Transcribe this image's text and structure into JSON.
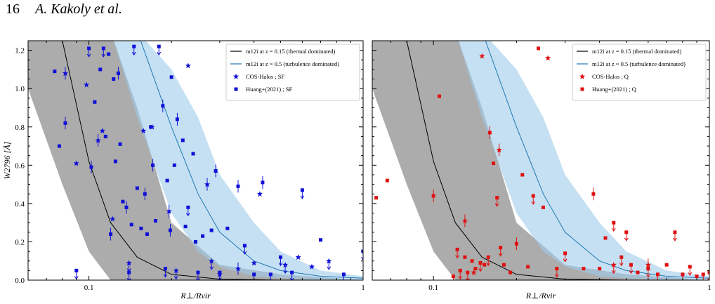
{
  "header": {
    "page_number": "16",
    "authors": "A. Kakoly et al."
  },
  "colors": {
    "thermal_line": "#000000",
    "thermal_band": "#9e9e9e",
    "turb_line": "#1f77b4",
    "turb_band": "#9fcbe9",
    "sf_points": "#1010d8",
    "q_points": "#e01010"
  },
  "chart_data": [
    {
      "type": "scatter",
      "panel": "left",
      "xlabel": "R⊥/Rvir",
      "ylabel": "W2796 [Å]",
      "xscale": "log",
      "xlim": [
        0.06,
        1.0
      ],
      "ylim": [
        0.0,
        1.25
      ],
      "x_ticks": [
        "0.1",
        "1"
      ],
      "y_ticks": [
        "0.0",
        "0.2",
        "0.4",
        "0.6",
        "0.8",
        "1.0",
        "1.2"
      ],
      "legend_position": "top-right",
      "legend": [
        "m12i at z = 0.15 (thermal dominated)",
        "m12i at z = 0.5 (turbulence dominated)",
        "COS-Halos ; SF",
        "Huang+(2021) ; SF"
      ],
      "bands": [
        {
          "name": "m12i at z = 0.15 (thermal dominated)",
          "x": [
            0.06,
            0.08,
            0.1,
            0.12,
            0.15,
            0.2,
            0.3,
            0.5,
            1.0
          ],
          "median": [
            1.6,
            1.25,
            0.62,
            0.3,
            0.12,
            0.03,
            0.005,
            0.0,
            0.0
          ],
          "lower": [
            1.0,
            0.5,
            0.15,
            0.0,
            0.0,
            0.0,
            0.0,
            0.0,
            0.0
          ],
          "upper": [
            1.3,
            1.3,
            1.3,
            1.3,
            0.9,
            0.3,
            0.08,
            0.03,
            0.0
          ]
        },
        {
          "name": "m12i at z = 0.5 (turbulence dominated)",
          "x": [
            0.12,
            0.15,
            0.2,
            0.25,
            0.3,
            0.4,
            0.5,
            0.7,
            1.0
          ],
          "median": [
            1.3,
            1.3,
            0.8,
            0.45,
            0.25,
            0.1,
            0.05,
            0.02,
            0.01
          ],
          "lower": [
            1.3,
            0.85,
            0.35,
            0.15,
            0.07,
            0.02,
            0.01,
            0.0,
            0.0
          ],
          "upper": [
            1.3,
            1.3,
            1.1,
            0.85,
            0.55,
            0.3,
            0.15,
            0.05,
            0.02
          ]
        }
      ],
      "series": [
        {
          "name": "COS-Halos ; SF",
          "marker": "star",
          "x": [
            0.082,
            0.09,
            0.098,
            0.108,
            0.112,
            0.122,
            0.14,
            0.158,
            0.17,
            0.196,
            0.208,
            0.23,
            0.27,
            0.28,
            0.3,
            0.35,
            0.4,
            0.42,
            0.52,
            0.58,
            0.65,
            0.75
          ],
          "y": [
            1.08,
            0.61,
            1.02,
            0.73,
            0.78,
            0.32,
            0.09,
            0.78,
            0.8,
            0.36,
            0.05,
            1.12,
            0.5,
            0.1,
            0.03,
            0.06,
            0.09,
            0.45,
            0.08,
            0.12,
            0.07,
            0.1
          ],
          "upper_limit": [
            false,
            false,
            false,
            false,
            false,
            false,
            true,
            false,
            false,
            false,
            true,
            false,
            false,
            true,
            true,
            false,
            false,
            false,
            true,
            false,
            false,
            true
          ]
        },
        {
          "name": "Huang+(2021) ; SF",
          "marker": "square",
          "x": [
            0.075,
            0.078,
            0.082,
            0.09,
            0.1,
            0.102,
            0.105,
            0.11,
            0.113,
            0.115,
            0.118,
            0.12,
            0.123,
            0.125,
            0.128,
            0.13,
            0.133,
            0.137,
            0.14,
            0.143,
            0.146,
            0.15,
            0.155,
            0.16,
            0.163,
            0.168,
            0.171,
            0.175,
            0.18,
            0.186,
            0.19,
            0.193,
            0.198,
            0.2,
            0.205,
            0.21,
            0.22,
            0.225,
            0.23,
            0.24,
            0.245,
            0.25,
            0.26,
            0.28,
            0.29,
            0.3,
            0.32,
            0.35,
            0.37,
            0.4,
            0.43,
            0.46,
            0.5,
            0.55,
            0.6,
            0.7,
            0.85,
            1.0
          ],
          "y": [
            1.09,
            0.7,
            0.82,
            0.05,
            1.21,
            0.59,
            0.93,
            1.1,
            1.21,
            0.75,
            1.18,
            0.24,
            1.05,
            0.62,
            1.08,
            0.71,
            0.41,
            0.38,
            0.04,
            0.29,
            1.22,
            0.48,
            0.27,
            0.45,
            0.24,
            0.8,
            0.6,
            0.31,
            1.22,
            0.91,
            0.06,
            0.52,
            0.26,
            1.06,
            0.6,
            0.84,
            0.73,
            0.28,
            0.38,
            0.66,
            0.2,
            0.04,
            0.23,
            0.26,
            0.57,
            0.04,
            0.27,
            0.49,
            0.18,
            0.03,
            0.51,
            0.03,
            0.12,
            0.04,
            0.47,
            0.21,
            0.03,
            0.15
          ],
          "upper_limit": [
            false,
            false,
            false,
            true,
            true,
            false,
            false,
            false,
            true,
            false,
            false,
            false,
            false,
            false,
            false,
            false,
            false,
            false,
            true,
            false,
            true,
            false,
            false,
            false,
            false,
            false,
            false,
            false,
            true,
            false,
            true,
            false,
            false,
            false,
            false,
            false,
            false,
            false,
            true,
            false,
            false,
            true,
            false,
            false,
            false,
            true,
            false,
            false,
            true,
            true,
            false,
            true,
            true,
            true,
            true,
            false,
            true,
            true
          ]
        }
      ]
    },
    {
      "type": "scatter",
      "panel": "right",
      "xlabel": "R⊥/Rvir",
      "ylabel": "",
      "xscale": "log",
      "xlim": [
        0.06,
        1.0
      ],
      "ylim": [
        0.0,
        1.25
      ],
      "x_ticks": [
        "0.1",
        "1"
      ],
      "legend_position": "top-right",
      "legend": [
        "m12i at z = 0.15 (thermal dominated)",
        "m12i at z = 0.5 (turbulence dominated)",
        "COS-Halos ; Q",
        "Huang+(2021) ; Q"
      ],
      "bands": [
        {
          "name": "m12i at z = 0.15 (thermal dominated)",
          "x": [
            0.06,
            0.08,
            0.1,
            0.12,
            0.15,
            0.2,
            0.3,
            0.5,
            1.0
          ],
          "median": [
            1.6,
            1.25,
            0.62,
            0.3,
            0.12,
            0.03,
            0.005,
            0.0,
            0.0
          ],
          "lower": [
            1.0,
            0.5,
            0.15,
            0.0,
            0.0,
            0.0,
            0.0,
            0.0,
            0.0
          ],
          "upper": [
            1.3,
            1.3,
            1.3,
            1.3,
            0.9,
            0.3,
            0.08,
            0.03,
            0.0
          ]
        },
        {
          "name": "m12i at z = 0.5 (turbulence dominated)",
          "x": [
            0.12,
            0.15,
            0.2,
            0.25,
            0.3,
            0.4,
            0.5,
            0.7,
            1.0
          ],
          "median": [
            1.3,
            1.3,
            0.8,
            0.45,
            0.25,
            0.1,
            0.05,
            0.02,
            0.01
          ],
          "lower": [
            1.3,
            0.85,
            0.35,
            0.15,
            0.07,
            0.02,
            0.01,
            0.0,
            0.0
          ],
          "upper": [
            1.3,
            1.3,
            1.1,
            0.85,
            0.55,
            0.3,
            0.15,
            0.05,
            0.02
          ]
        }
      ],
      "series": [
        {
          "name": "COS-Halos ; Q",
          "marker": "star",
          "x": [
            0.13,
            0.14,
            0.15,
            0.173,
            0.26,
            0.45,
            0.6
          ],
          "y": [
            0.31,
            0.04,
            1.17,
            0.68,
            1.16,
            0.08,
            0.08
          ],
          "upper_limit": [
            false,
            false,
            false,
            false,
            false,
            true,
            false
          ]
        },
        {
          "name": "Huang+(2021) ; Q",
          "marker": "square",
          "x": [
            0.062,
            0.068,
            0.1,
            0.105,
            0.118,
            0.122,
            0.125,
            0.13,
            0.133,
            0.138,
            0.142,
            0.148,
            0.153,
            0.158,
            0.16,
            0.165,
            0.17,
            0.175,
            0.18,
            0.19,
            0.2,
            0.21,
            0.22,
            0.23,
            0.24,
            0.25,
            0.28,
            0.3,
            0.35,
            0.38,
            0.4,
            0.42,
            0.45,
            0.48,
            0.5,
            0.52,
            0.55,
            0.6,
            0.65,
            0.7,
            0.75,
            0.8,
            0.85,
            0.9,
            0.95,
            1.0
          ],
          "y": [
            0.43,
            0.52,
            0.44,
            0.96,
            0.02,
            0.16,
            0.05,
            0.12,
            0.04,
            0.1,
            0.06,
            0.09,
            0.08,
            0.12,
            0.77,
            0.61,
            0.43,
            0.17,
            0.08,
            0.04,
            0.19,
            0.55,
            0.07,
            0.44,
            1.21,
            0.38,
            0.06,
            0.14,
            0.06,
            0.45,
            0.06,
            0.22,
            0.3,
            0.12,
            0.25,
            0.08,
            0.04,
            0.06,
            0.03,
            0.08,
            0.25,
            0.03,
            0.07,
            0.02,
            0.03,
            0.04
          ],
          "upper_limit": [
            false,
            false,
            false,
            false,
            true,
            true,
            true,
            false,
            true,
            false,
            false,
            true,
            false,
            true,
            false,
            false,
            true,
            true,
            false,
            false,
            false,
            false,
            false,
            true,
            false,
            false,
            true,
            true,
            false,
            false,
            false,
            false,
            true,
            true,
            true,
            true,
            false,
            true,
            true,
            false,
            true,
            true,
            true,
            false,
            true,
            true
          ]
        }
      ]
    }
  ]
}
